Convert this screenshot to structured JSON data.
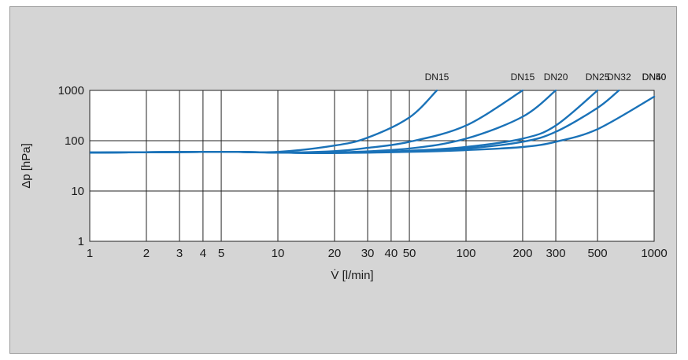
{
  "chart_data": {
    "type": "line",
    "title": "",
    "xlabel": "V̇ [l/min]",
    "ylabel": "Δp [hPa]",
    "x_scale": "log",
    "y_scale": "log",
    "xlim": [
      1,
      1000
    ],
    "ylim": [
      1,
      1000
    ],
    "grid": true,
    "x_ticks": [
      "1",
      "2",
      "3",
      "4",
      "5",
      "10",
      "20",
      "30",
      "40",
      "50",
      "100",
      "200",
      "300",
      "500",
      "1000"
    ],
    "x_tick_values": [
      1,
      2,
      3,
      4,
      5,
      10,
      20,
      30,
      40,
      50,
      100,
      200,
      300,
      500,
      1000
    ],
    "y_ticks": [
      "1",
      "10",
      "100",
      "1000"
    ],
    "y_tick_values": [
      1,
      10,
      100,
      1000
    ],
    "line_color": "#1a72b8",
    "series": [
      {
        "name": "DN15",
        "points": [
          [
            1,
            58
          ],
          [
            5,
            60
          ],
          [
            10,
            60
          ],
          [
            20,
            80
          ],
          [
            30,
            115
          ],
          [
            50,
            290
          ],
          [
            70,
            1000
          ]
        ]
      },
      {
        "name": "DN15",
        "points": [
          [
            1,
            58
          ],
          [
            5,
            60
          ],
          [
            10,
            58
          ],
          [
            20,
            62
          ],
          [
            30,
            72
          ],
          [
            50,
            95
          ],
          [
            100,
            200
          ],
          [
            200,
            1000
          ]
        ]
      },
      {
        "name": "DN20",
        "points": [
          [
            1,
            58
          ],
          [
            5,
            60
          ],
          [
            10,
            58
          ],
          [
            20,
            58
          ],
          [
            50,
            70
          ],
          [
            100,
            110
          ],
          [
            200,
            300
          ],
          [
            300,
            1000
          ]
        ]
      },
      {
        "name": "DN25",
        "points": [
          [
            1,
            58
          ],
          [
            5,
            60
          ],
          [
            10,
            58
          ],
          [
            20,
            57
          ],
          [
            50,
            63
          ],
          [
            100,
            75
          ],
          [
            200,
            110
          ],
          [
            300,
            200
          ],
          [
            500,
            1000
          ]
        ]
      },
      {
        "name": "DN32",
        "points": [
          [
            1,
            58
          ],
          [
            5,
            60
          ],
          [
            10,
            58
          ],
          [
            20,
            57
          ],
          [
            50,
            61
          ],
          [
            100,
            70
          ],
          [
            200,
            95
          ],
          [
            300,
            150
          ],
          [
            500,
            450
          ],
          [
            650,
            1000
          ]
        ]
      },
      {
        "name": "DN40",
        "points": [
          [
            1,
            58
          ],
          [
            5,
            60
          ],
          [
            10,
            58
          ],
          [
            20,
            57
          ],
          [
            50,
            60
          ],
          [
            100,
            65
          ],
          [
            200,
            75
          ],
          [
            300,
            95
          ],
          [
            500,
            170
          ],
          [
            1000,
            750
          ]
        ]
      }
    ],
    "extra_labels": [
      "DN50"
    ]
  }
}
